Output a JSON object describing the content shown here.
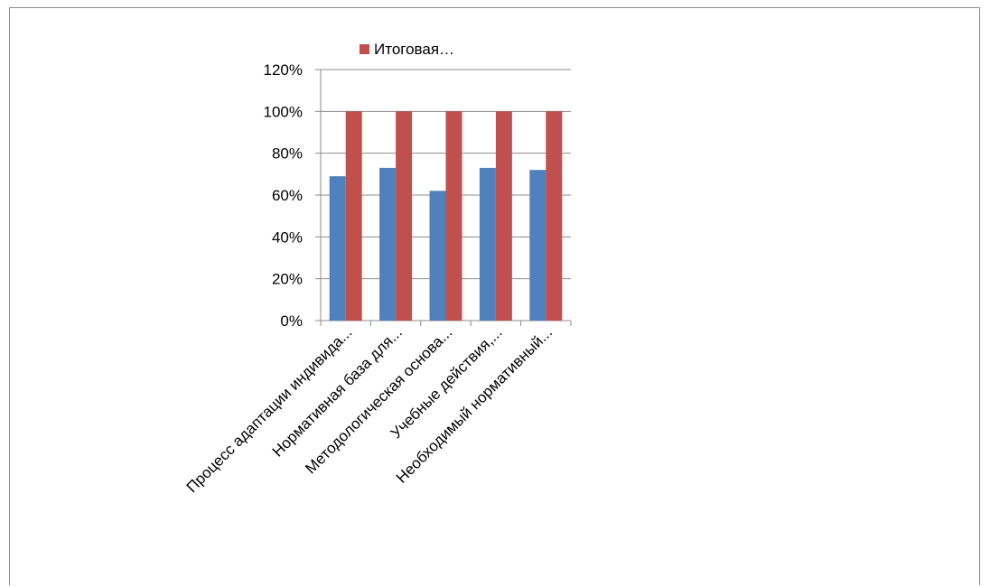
{
  "chart_data": {
    "type": "bar",
    "categories": [
      "Процесс адаптации индивида...",
      "Нормативная база для...",
      "Методологическая основа...",
      "Учебные действия,...",
      "Необходимый нормативный..."
    ],
    "series": [
      {
        "values": [
          0.69,
          0.73,
          0.62,
          0.73,
          0.72
        ],
        "color": "#4F81BD"
      },
      {
        "name": "Итоговая…",
        "values": [
          1.0,
          1.0,
          1.0,
          1.0,
          1.0
        ],
        "color": "#C0504D"
      }
    ],
    "ylim": [
      0,
      1.2
    ],
    "yticks": [
      "0%",
      "20%",
      "40%",
      "60%",
      "80%",
      "100%",
      "120%"
    ],
    "grid": true,
    "legend": "top"
  }
}
